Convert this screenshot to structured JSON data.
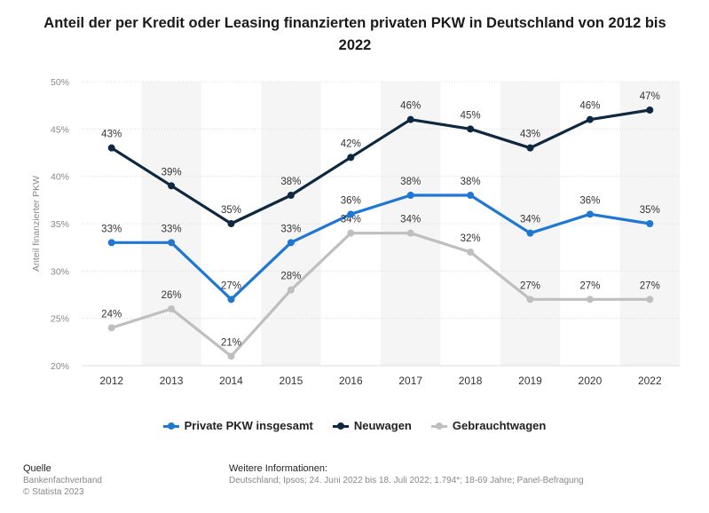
{
  "chart_data": {
    "type": "line",
    "title": "Anteil der per Kredit oder Leasing finanzierten privaten PKW in Deutschland von 2012 bis 2022",
    "xlabel": "",
    "ylabel": "Anteil finanzierter PKW",
    "ylim": [
      20,
      50
    ],
    "yticks": [
      "20%",
      "25%",
      "30%",
      "35%",
      "40%",
      "45%",
      "50%"
    ],
    "ytick_values": [
      20,
      25,
      30,
      35,
      40,
      45,
      50
    ],
    "categories": [
      "2012",
      "2013",
      "2014",
      "2015",
      "2016",
      "2017",
      "2018",
      "2019",
      "2020",
      "2022"
    ],
    "series": [
      {
        "name": "Private PKW insgesamt",
        "color": "#1F77D4",
        "values": [
          33,
          33,
          27,
          33,
          36,
          38,
          38,
          34,
          36,
          35
        ],
        "labels": [
          "33%",
          "33%",
          "27%",
          "33%",
          "36%",
          "38%",
          "38%",
          "34%",
          "36%",
          "35%"
        ]
      },
      {
        "name": "Neuwagen",
        "color": "#0E2841",
        "values": [
          43,
          39,
          35,
          38,
          42,
          46,
          45,
          43,
          46,
          47
        ],
        "labels": [
          "43%",
          "39%",
          "35%",
          "38%",
          "42%",
          "46%",
          "45%",
          "43%",
          "46%",
          "47%"
        ]
      },
      {
        "name": "Gebrauchtwagen",
        "color": "#BFBFBF",
        "values": [
          24,
          26,
          21,
          28,
          34,
          34,
          32,
          27,
          27,
          27
        ],
        "labels": [
          "24%",
          "26%",
          "21%",
          "28%",
          "34%",
          "34%",
          "32%",
          "27%",
          "27%",
          "27%"
        ]
      }
    ],
    "grid": true,
    "legend": "bottom-center"
  },
  "footer": {
    "source_label": "Quelle",
    "source_name": "Bankenfachverband",
    "copyright": "© Statista 2023",
    "info_label": "Weitere Informationen:",
    "info_text": "Deutschland; Ipsos; 24. Juni 2022 bis 18. Juli 2022; 1.794*; 18-69 Jahre; Panel-Befragung"
  }
}
